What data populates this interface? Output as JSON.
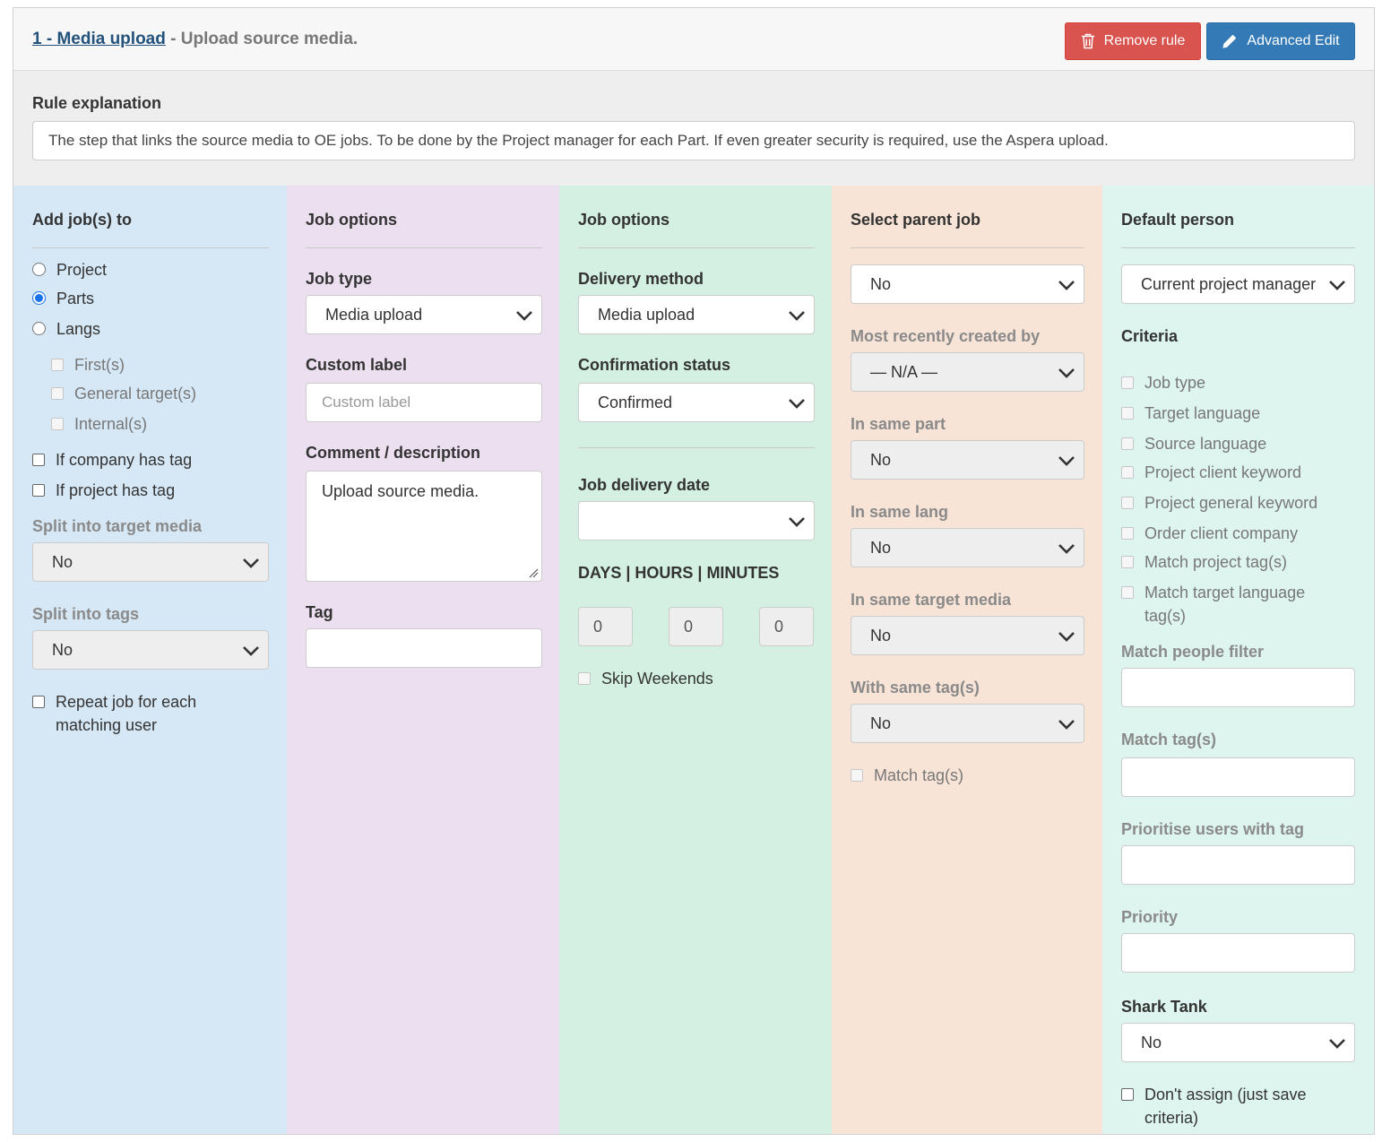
{
  "header": {
    "rule_link": "1 - Media upload",
    "rule_suffix": " - Upload source media.",
    "remove_label": "Remove rule",
    "advanced_label": "Advanced Edit"
  },
  "explanation": {
    "label": "Rule explanation",
    "text": "The step that links the source media to OE jobs. To be done by the Project manager for each Part. If even greater security is required, use the Aspera upload."
  },
  "col1": {
    "heading": "Add job(s) to",
    "radios": [
      {
        "label": "Project",
        "checked": false
      },
      {
        "label": "Parts",
        "checked": true
      },
      {
        "label": "Langs",
        "checked": false
      }
    ],
    "sub_options": [
      "First(s)",
      "General target(s)",
      "Internal(s)"
    ],
    "checkboxes": [
      "If company has tag",
      "If project has tag"
    ],
    "split_media_label": "Split into target media",
    "split_media_value": "No",
    "split_tags_label": "Split into tags",
    "split_tags_value": "No",
    "repeat_line1": "Repeat job for each",
    "repeat_line2": "matching user"
  },
  "col2": {
    "heading": "Job options",
    "job_type_label": "Job type",
    "job_type_value": "Media upload",
    "custom_label_label": "Custom label",
    "custom_label_placeholder": "Custom label",
    "comment_label": "Comment / description",
    "comment_value": "Upload source media.",
    "tag_label": "Tag",
    "tag_value": ""
  },
  "col3": {
    "heading": "Job options",
    "delivery_label": "Delivery method",
    "delivery_value": "Media upload",
    "confirm_label": "Confirmation status",
    "confirm_value": "Confirmed",
    "date_label": "Job delivery date",
    "date_value": "",
    "dhm_label": "DAYS | HOURS | MINUTES",
    "days": "0",
    "hours": "0",
    "minutes": "0",
    "skip_label": "Skip Weekends"
  },
  "col4": {
    "heading": "Select parent job",
    "parent_value": "No",
    "recent_label": "Most recently created by",
    "recent_value": "— N/A —",
    "same_part_label": "In same part",
    "same_part_value": "No",
    "same_lang_label": "In same lang",
    "same_lang_value": "No",
    "same_media_label": "In same target media",
    "same_media_value": "No",
    "same_tags_label": "With same tag(s)",
    "same_tags_value": "No",
    "match_tags_label": "Match tag(s)"
  },
  "col5": {
    "heading": "Default person",
    "person_value": "Current project manager",
    "criteria_label": "Criteria",
    "criteria": [
      "Job type",
      "Target language",
      "Source language",
      "Project client keyword",
      "Project general keyword",
      "Order client company",
      "Match project tag(s)"
    ],
    "criteria_last_line1": "Match target language",
    "criteria_last_line2": "tag(s)",
    "people_filter_label": "Match people filter",
    "match_tags_label": "Match tag(s)",
    "prioritise_label": "Prioritise users with tag",
    "priority_label": "Priority",
    "shark_label": "Shark Tank",
    "shark_value": "No",
    "dont_assign_line1": "Don't assign (just save",
    "dont_assign_line2": "criteria)"
  }
}
